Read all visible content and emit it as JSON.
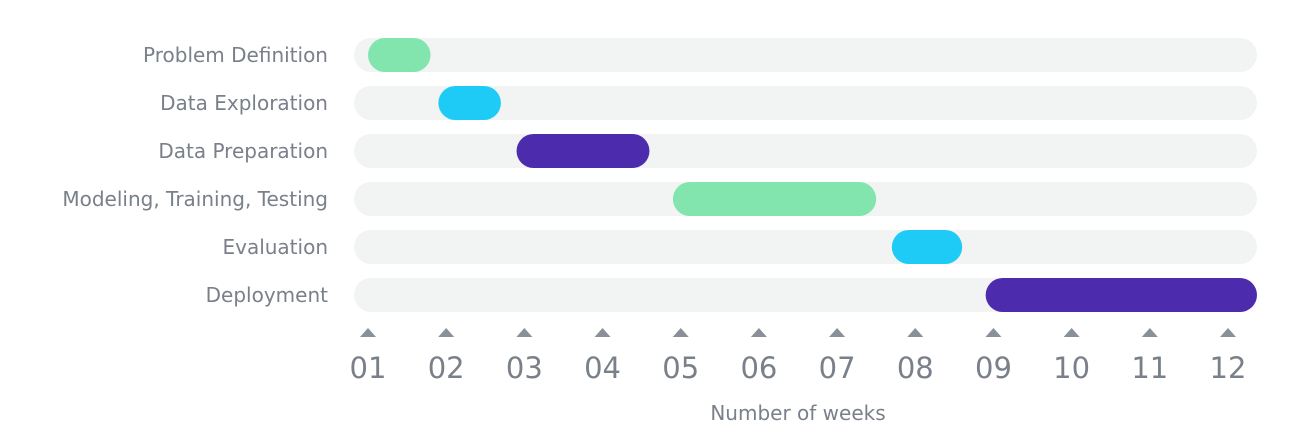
{
  "chart_data": {
    "type": "gantt",
    "xlabel": "Number of weeks",
    "x_ticks": [
      "01",
      "02",
      "03",
      "04",
      "05",
      "06",
      "07",
      "08",
      "09",
      "10",
      "11",
      "12"
    ],
    "xlim": [
      1,
      12
    ],
    "tasks": [
      {
        "name": "Problem Definition",
        "start": 1.0,
        "end": 1.8,
        "color": "#82e5ad"
      },
      {
        "name": "Data Exploration",
        "start": 1.9,
        "end": 2.7,
        "color": "#1ecbf7"
      },
      {
        "name": "Data Preparation",
        "start": 2.9,
        "end": 4.6,
        "color": "#4c2cad"
      },
      {
        "name": "Modeling, Training, Testing",
        "start": 4.9,
        "end": 7.5,
        "color": "#82e5ad"
      },
      {
        "name": "Evaluation",
        "start": 7.7,
        "end": 8.6,
        "color": "#1ecbf7"
      },
      {
        "name": "Deployment",
        "start": 8.9,
        "end": 12.4,
        "color": "#4c2cad"
      }
    ],
    "track_color": "#f2f3f3",
    "tick_marker_color": "#8a9099"
  }
}
